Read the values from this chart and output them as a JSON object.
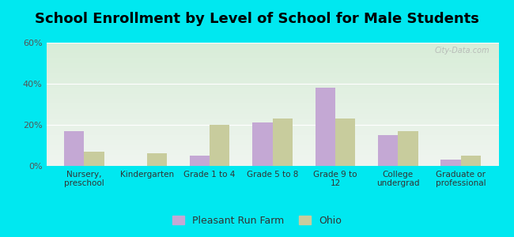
{
  "title": "School Enrollment by Level of School for Male Students",
  "categories": [
    "Nursery,\npreschool",
    "Kindergarten",
    "Grade 1 to 4",
    "Grade 5 to 8",
    "Grade 9 to\n12",
    "College\nundergrad",
    "Graduate or\nprofessional"
  ],
  "pleasant_run_farm": [
    17,
    0,
    5,
    21,
    38,
    15,
    3
  ],
  "ohio": [
    7,
    6,
    20,
    23,
    23,
    17,
    5
  ],
  "pleasant_color": "#c4a8d4",
  "ohio_color": "#c8cc9d",
  "background_outer": "#00e8f0",
  "background_plot_top": "#f0f5f0",
  "background_plot_bottom": "#d8edd8",
  "ylim": [
    0,
    60
  ],
  "yticks": [
    0,
    20,
    40,
    60
  ],
  "ytick_labels": [
    "0%",
    "20%",
    "40%",
    "60%"
  ],
  "title_fontsize": 13,
  "legend_label_1": "Pleasant Run Farm",
  "legend_label_2": "Ohio",
  "bar_width": 0.32
}
